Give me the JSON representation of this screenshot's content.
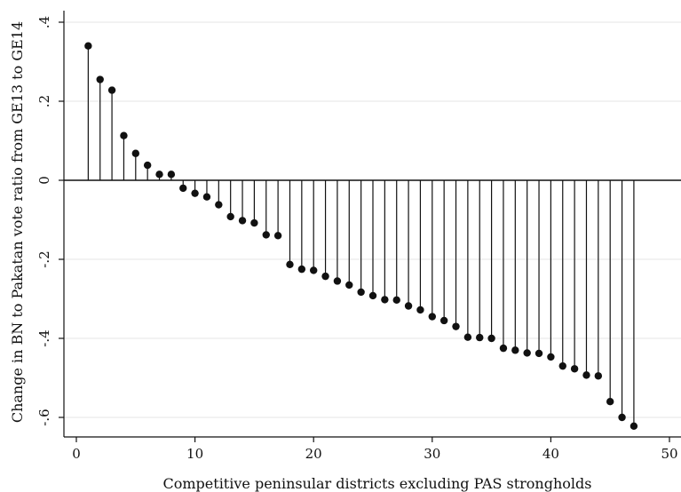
{
  "chart_data": {
    "type": "stem",
    "xlabel": "Competitive peninsular districts excluding PAS strongholds",
    "ylabel": "Change in BN to Pakatan vote ratio from GE13 to GE14",
    "xlim": [
      0,
      50
    ],
    "ylim": [
      -0.6,
      0.4
    ],
    "xticks": [
      0,
      10,
      20,
      30,
      40,
      50
    ],
    "xtick_labels": [
      "0",
      "10",
      "20",
      "30",
      "40",
      "50"
    ],
    "yticks": [
      -0.6,
      -0.4,
      -0.2,
      0,
      0.2,
      0.4
    ],
    "ytick_labels": [
      "-.6",
      "-.4",
      "-.2",
      "0",
      ".2",
      ".4"
    ],
    "grid": "horizontal",
    "baseline": 0,
    "x": [
      1,
      2,
      3,
      4,
      5,
      6,
      7,
      8,
      9,
      10,
      11,
      12,
      13,
      14,
      15,
      16,
      17,
      18,
      19,
      20,
      21,
      22,
      23,
      24,
      25,
      26,
      27,
      28,
      29,
      30,
      31,
      32,
      33,
      34,
      35,
      36,
      37,
      38,
      39,
      40,
      41,
      42,
      43,
      44,
      45,
      46,
      47
    ],
    "values": [
      0.34,
      0.255,
      0.228,
      0.113,
      0.068,
      0.038,
      0.015,
      0.015,
      -0.02,
      -0.033,
      -0.042,
      -0.062,
      -0.092,
      -0.102,
      -0.108,
      -0.138,
      -0.14,
      -0.213,
      -0.225,
      -0.228,
      -0.243,
      -0.255,
      -0.265,
      -0.283,
      -0.292,
      -0.302,
      -0.303,
      -0.318,
      -0.328,
      -0.345,
      -0.355,
      -0.37,
      -0.397,
      -0.398,
      -0.4,
      -0.425,
      -0.43,
      -0.437,
      -0.438,
      -0.447,
      -0.47,
      -0.477,
      -0.493,
      -0.495,
      -0.56,
      -0.6,
      -0.622
    ]
  }
}
